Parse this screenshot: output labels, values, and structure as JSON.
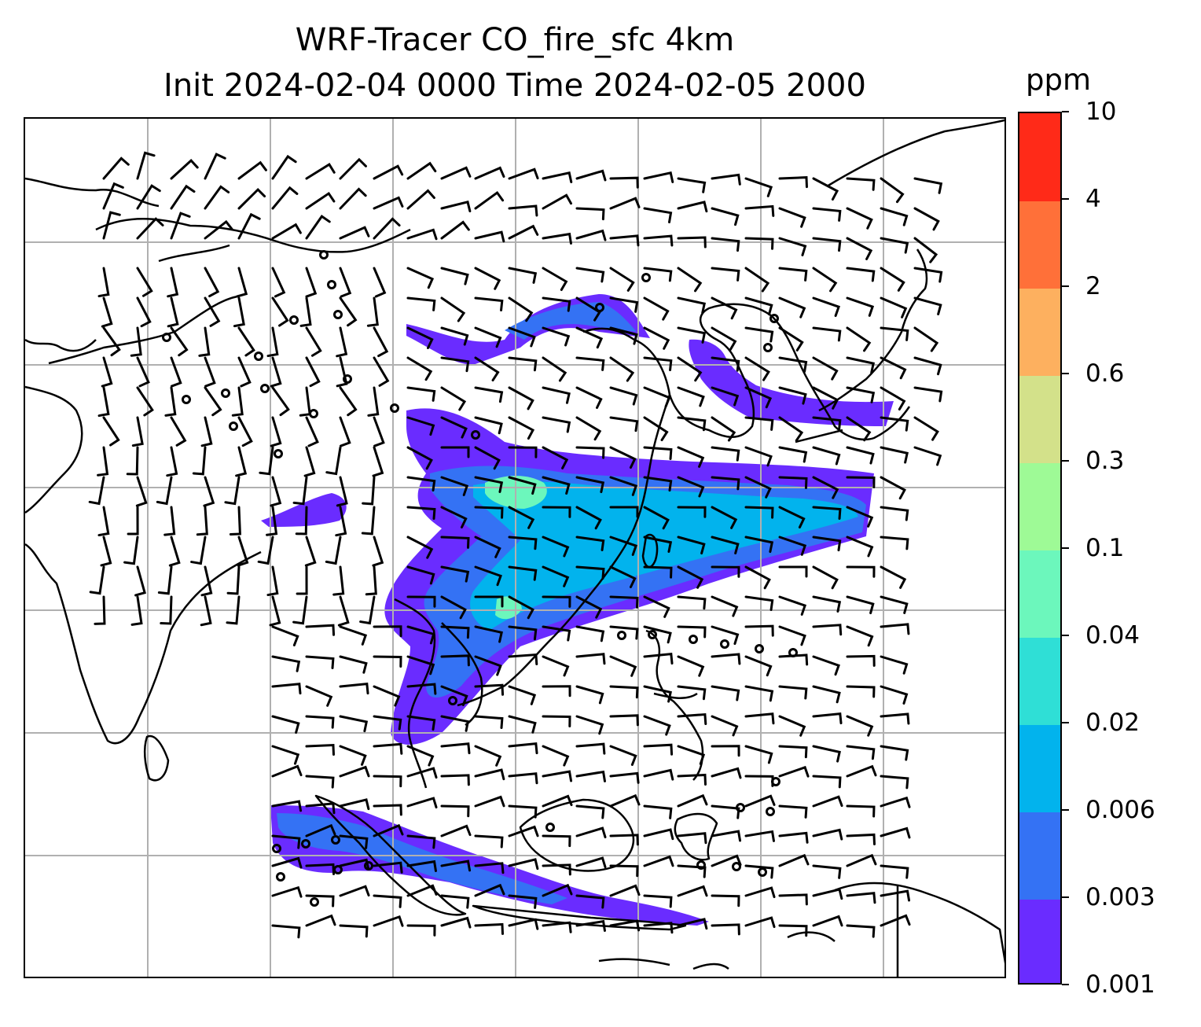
{
  "title": {
    "line1": "WRF-Tracer CO_fire_sfc 4km",
    "line2": "Init 2024-02-04 0000 Time 2024-02-05 2000"
  },
  "colorbar": {
    "unit": "ppm",
    "levels": [
      "0.001",
      "0.003",
      "0.006",
      "0.02",
      "0.04",
      "0.1",
      "0.3",
      "0.6",
      "2",
      "4",
      "10"
    ],
    "colors": [
      "#6a2cff",
      "#3472f4",
      "#02b3ed",
      "#2fdfd6",
      "#6cf7bc",
      "#9efa96",
      "#d3e18a",
      "#fdb05f",
      "#ff7039",
      "#ff2a18"
    ]
  },
  "map": {
    "background": "#ffffff",
    "gridline_color": "#b0b0b0",
    "coastline_color": "#000000",
    "wind_barb_color": "#000000",
    "plume_regions": [
      {
        "name": "north-china-band",
        "shading": "0.001-0.006"
      },
      {
        "name": "korea-japan-band",
        "shading": "0.001-0.006"
      },
      {
        "name": "south-china-indochina-band",
        "shading": "0.001-0.1"
      },
      {
        "name": "bay-of-bengal-patch",
        "shading": "0.001-0.003"
      },
      {
        "name": "sumatra-java-band",
        "shading": "0.001-0.006"
      }
    ]
  }
}
